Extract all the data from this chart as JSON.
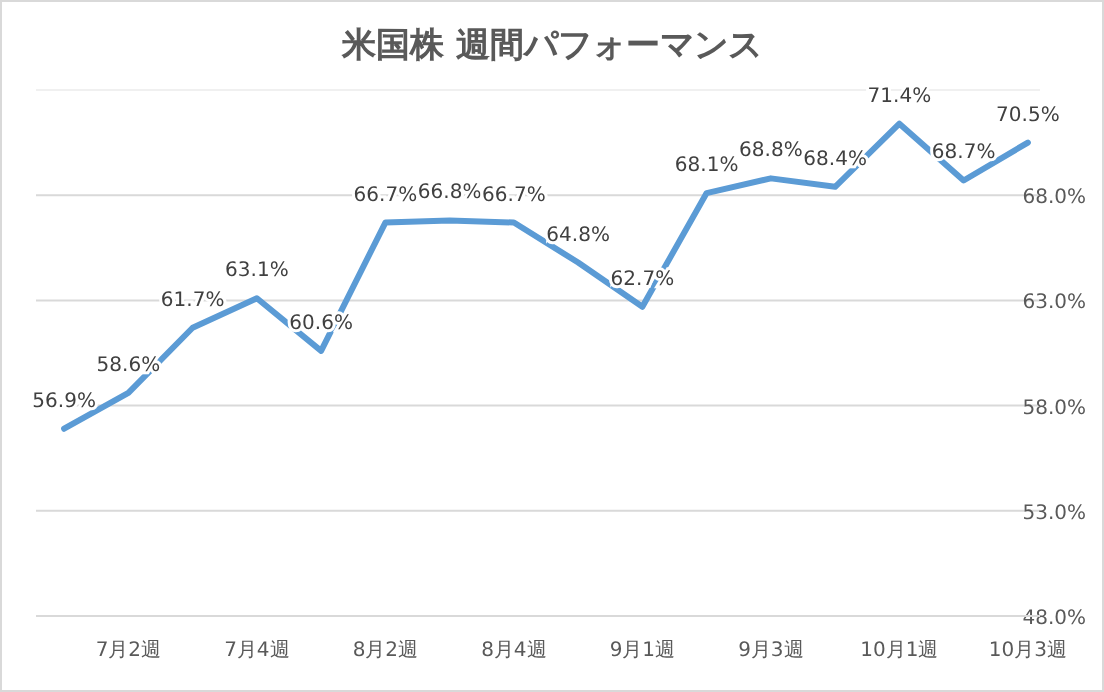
{
  "chart_data": {
    "type": "line",
    "title": "米国株 週間パフォーマンス",
    "categories": [
      null,
      "7月2週",
      null,
      "7月4週",
      null,
      "8月2週",
      null,
      "8月4週",
      null,
      "9月1週",
      null,
      "9月3週",
      null,
      "10月1週",
      null,
      "10月3週"
    ],
    "series": [
      {
        "color": "#5b9bd5",
        "values": [
          56.9,
          58.6,
          61.7,
          63.1,
          60.6,
          66.7,
          66.8,
          66.7,
          64.8,
          62.7,
          68.1,
          68.8,
          68.4,
          71.4,
          68.7,
          70.5
        ],
        "value_labels": [
          "56.9%",
          "58.6%",
          "61.7%",
          "63.1%",
          "60.6%",
          "66.7%",
          "66.8%",
          "66.7%",
          "64.8%",
          "62.7%",
          "68.1%",
          "68.8%",
          "68.4%",
          "71.4%",
          "68.7%",
          "70.5%"
        ]
      }
    ],
    "ylim": [
      48,
      73
    ],
    "yticks": [
      {
        "value": 48,
        "label": "48.0%"
      },
      {
        "value": 53,
        "label": "53.0%"
      },
      {
        "value": 58,
        "label": "58.0%"
      },
      {
        "value": 63,
        "label": "63.0%"
      },
      {
        "value": 68,
        "label": "68.0%"
      }
    ],
    "grid": "y",
    "marker": "none",
    "line_style": "solid"
  }
}
